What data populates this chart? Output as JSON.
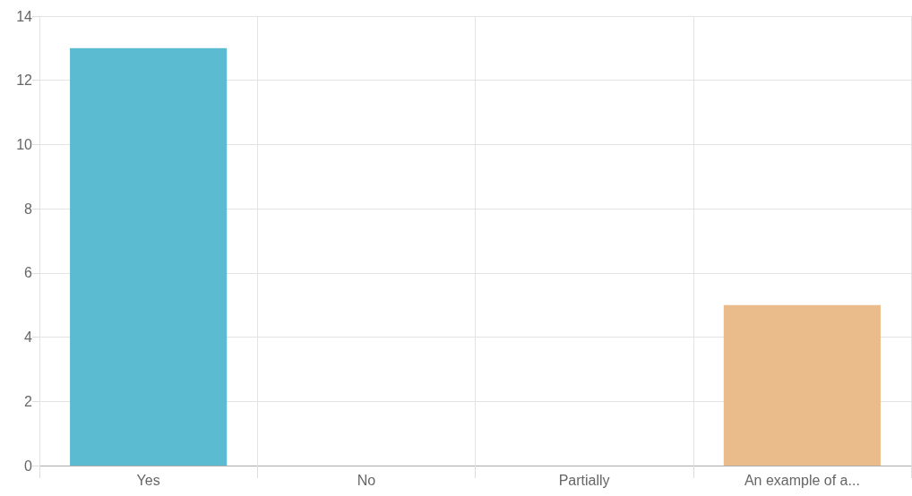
{
  "chart_data": {
    "type": "bar",
    "categories": [
      "Yes",
      "No",
      "Partially",
      "An example of a..."
    ],
    "values": [
      13,
      0,
      0,
      5
    ],
    "colors": [
      "#5bbcd1",
      "#5bbcd1",
      "#5bbcd1",
      "#eabb8b"
    ],
    "ylim": [
      0,
      14
    ],
    "yticks": [
      0,
      2,
      4,
      6,
      8,
      10,
      12,
      14
    ],
    "grid": true
  }
}
